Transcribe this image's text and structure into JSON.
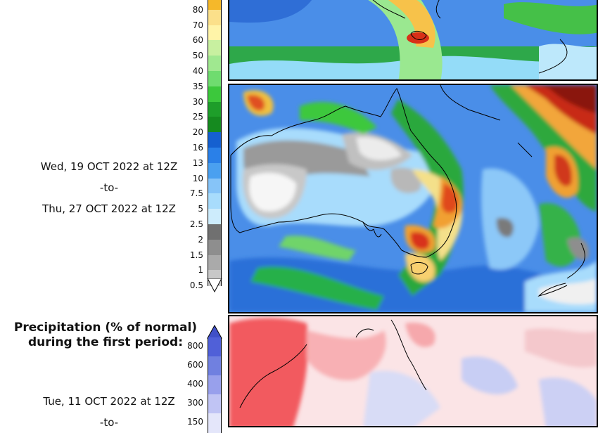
{
  "total_period": {
    "line1": "Wed, 19 OCT 2022 at 12Z",
    "line2": "-to-",
    "line3": "Thu, 27 OCT 2022 at 12Z"
  },
  "precip_legend": {
    "ticks": [
      "80",
      "70",
      "60",
      "50",
      "40",
      "35",
      "30",
      "25",
      "20",
      "16",
      "13",
      "10",
      "7.5",
      "5",
      "2.5",
      "2",
      "1.5",
      "1",
      "0.5"
    ],
    "colors": [
      "#f5b82a",
      "#fbe08a",
      "#fff4a8",
      "#c8f0a0",
      "#a0e890",
      "#6fdc6f",
      "#3cc83c",
      "#1e9e2a",
      "#158a1f",
      "#1560d0",
      "#2a80e8",
      "#4aa0f0",
      "#86c4f8",
      "#a8dcfc",
      "#cdecfc",
      "#707070",
      "#8e8e8e",
      "#aaaaaa",
      "#c8c8c8"
    ]
  },
  "anomaly": {
    "title_line1": "Precipitation (% of normal)",
    "title_line2": "during the first period:",
    "ticks": [
      "800",
      "600",
      "400",
      "300",
      "150"
    ],
    "colors": [
      "#5060d8",
      "#7080e0",
      "#98a0ec",
      "#c0c4f4",
      "#e4e6fa"
    ],
    "period_line1": "Tue, 11 OCT 2022 at 12Z",
    "period_line2": "-to-"
  }
}
